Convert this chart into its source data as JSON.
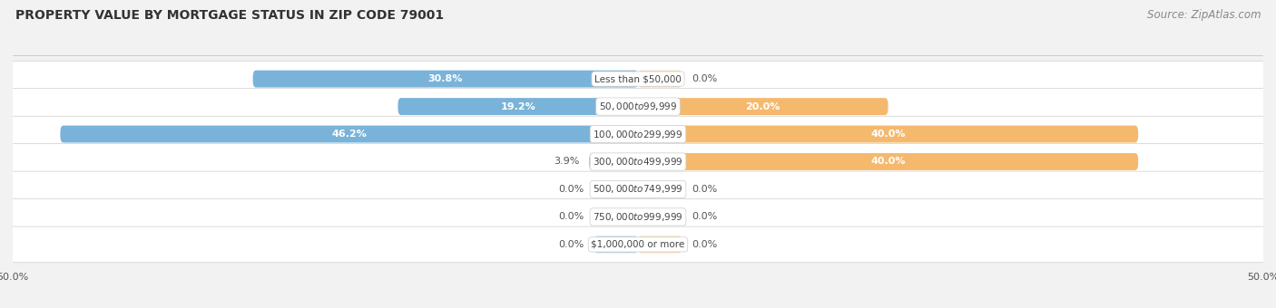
{
  "title": "PROPERTY VALUE BY MORTGAGE STATUS IN ZIP CODE 79001",
  "source": "Source: ZipAtlas.com",
  "categories": [
    "Less than $50,000",
    "$50,000 to $99,999",
    "$100,000 to $299,999",
    "$300,000 to $499,999",
    "$500,000 to $749,999",
    "$750,000 to $999,999",
    "$1,000,000 or more"
  ],
  "without_mortgage": [
    30.8,
    19.2,
    46.2,
    3.9,
    0.0,
    0.0,
    0.0
  ],
  "with_mortgage": [
    0.0,
    20.0,
    40.0,
    40.0,
    0.0,
    0.0,
    0.0
  ],
  "color_without": "#7ab3d9",
  "color_with": "#f5b96e",
  "color_without_light": "#b8d5eb",
  "color_with_light": "#f9d9ad",
  "axis_limit": 50.0,
  "bg_color": "#f2f2f2",
  "row_bg_color": "#e8e8e8",
  "title_fontsize": 10,
  "source_fontsize": 8.5,
  "label_fontsize": 8,
  "category_fontsize": 7.5,
  "zero_stub": 3.5
}
